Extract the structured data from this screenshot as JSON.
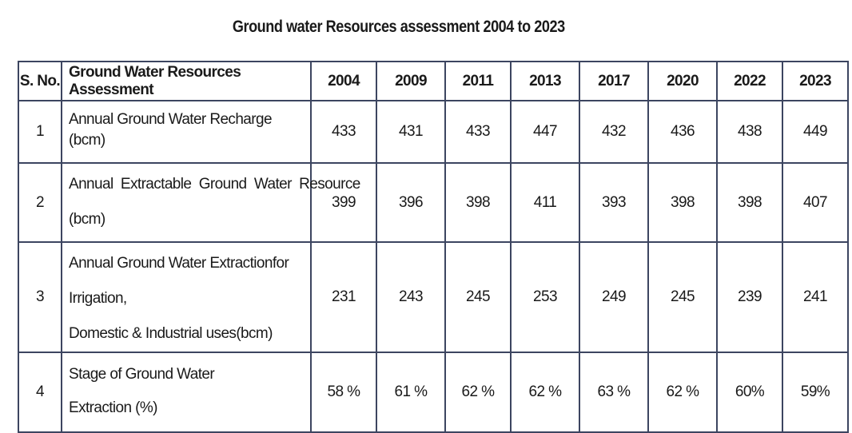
{
  "title": "Ground water Resources assessment 2004 to 2023",
  "table": {
    "headers": {
      "sno": "S. No.",
      "assessment": "Ground Water Resources Assessment",
      "years": [
        "2004",
        "2009",
        "2011",
        "2013",
        "2017",
        "2020",
        "2022",
        "2023"
      ]
    },
    "rows": [
      {
        "sno": "1",
        "label_lines": [
          "Annual Ground Water Recharge (bcm)"
        ],
        "values": [
          "433",
          "431",
          "433",
          "447",
          "432",
          "436",
          "438",
          "449"
        ]
      },
      {
        "sno": "2",
        "label_lines": [
          "Annual  Extractable  Ground  Water  Resource",
          "(bcm)"
        ],
        "values": [
          "399",
          "396",
          "398",
          "411",
          "393",
          "398",
          "398",
          "407"
        ]
      },
      {
        "sno": "3",
        "label_lines": [
          "Annual Ground Water Extractionfor Irrigation,",
          "Domestic & Industrial uses(bcm)"
        ],
        "values": [
          "231",
          "243",
          "245",
          "253",
          "249",
          "245",
          "239",
          "241"
        ]
      },
      {
        "sno": "4",
        "label_lines": [
          "Stage of Ground Water",
          "Extraction (%)"
        ],
        "values": [
          "58 %",
          "61 %",
          "62 %",
          "62 %",
          "63 %",
          "62 %",
          "60%",
          "59%"
        ]
      }
    ]
  }
}
